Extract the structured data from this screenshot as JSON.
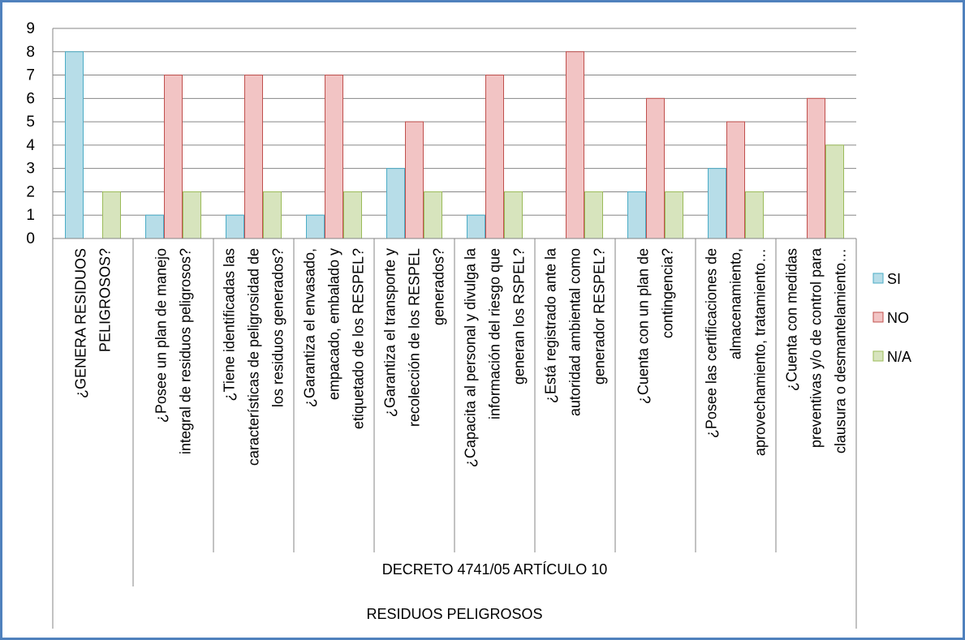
{
  "chart_data": {
    "type": "bar",
    "title": "",
    "xlabel": "",
    "ylabel": "",
    "ylim": [
      0,
      9
    ],
    "yticks": [
      0,
      1,
      2,
      3,
      4,
      5,
      6,
      7,
      8,
      9
    ],
    "grid": true,
    "legend_position": "right",
    "categories": [
      [
        "¿GENERA RESIDUOS",
        "PELIGROSOS?"
      ],
      [
        "¿Posee un plan de manejo",
        "integral de  residuos peligrosos?"
      ],
      [
        "¿Tiene identificadas las",
        "características de peligrosidad de",
        "los residuos generados?"
      ],
      [
        "¿Garantiza el envasado,",
        "empacado, embalado  y",
        "etiquetado de los RESPEL?"
      ],
      [
        "¿Garantiza el transporte y",
        "recolección de los RESPEL",
        "generados?"
      ],
      [
        "¿Capacita al personal y divulga la",
        "información del riesgo que",
        "generan los RSPEL?"
      ],
      [
        "¿Está registrado ante la",
        "autoridad ambiental como",
        "generador RESPEL?"
      ],
      [
        "¿Cuenta con un plan de",
        "contingencia?"
      ],
      [
        "¿Posee las certificaciones de",
        "almacenamiento,",
        "aprovechamiento, tratamiento…"
      ],
      [
        "¿Cuenta con  medidas",
        "preventivas y/o de control para",
        "clausura o desmantelamiento…"
      ]
    ],
    "series": [
      {
        "name": "SI",
        "values": [
          8,
          1,
          1,
          1,
          3,
          1,
          0,
          2,
          3,
          0
        ],
        "fill": "#b7dde8",
        "stroke": "#4bacc6"
      },
      {
        "name": "NO",
        "values": [
          0,
          7,
          7,
          7,
          5,
          7,
          8,
          6,
          5,
          6
        ],
        "fill": "#f2c4c4",
        "stroke": "#c0504d"
      },
      {
        "name": "N/A",
        "values": [
          2,
          2,
          2,
          2,
          2,
          2,
          2,
          2,
          2,
          4
        ],
        "fill": "#d7e4bd",
        "stroke": "#9bbb59"
      }
    ],
    "groups": [
      {
        "label": "DECRETO 4741/05 ARTÍCULO 10",
        "from": 1,
        "to": 9,
        "level": 1
      },
      {
        "label": "RESIDUOS PELIGROSOS",
        "from": 0,
        "to": 9,
        "level": 2
      }
    ]
  }
}
